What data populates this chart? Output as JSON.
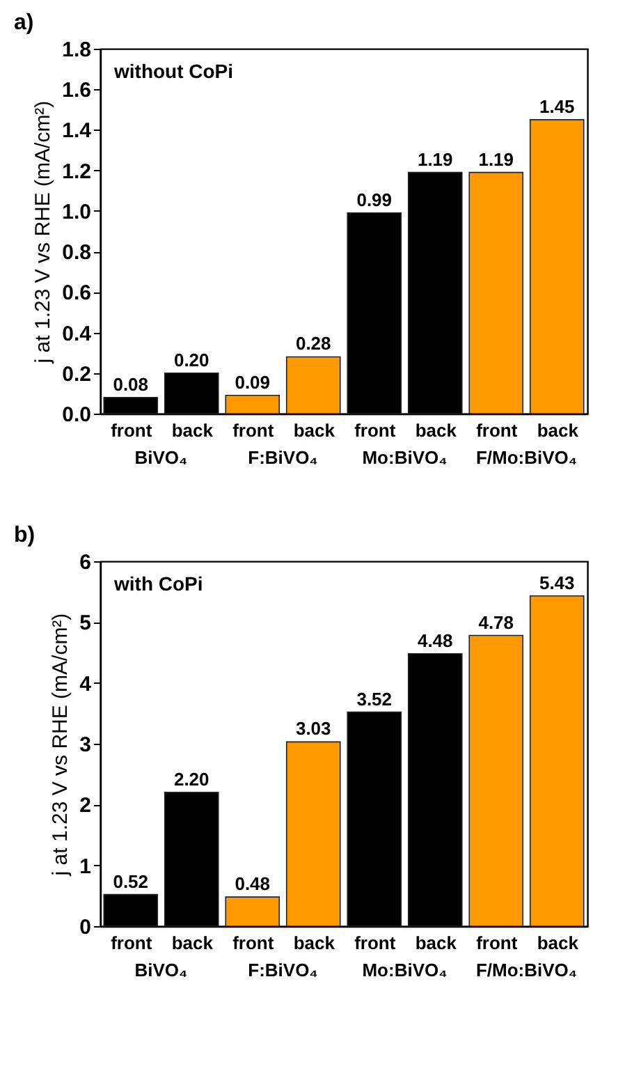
{
  "chart_data": [
    {
      "type": "bar",
      "title": "a)",
      "subtitle": "without CoPi",
      "ylabel": "j at 1.23 V vs RHE (mA/cm²)",
      "categories": [
        "front",
        "back",
        "front",
        "back",
        "front",
        "back",
        "front",
        "back"
      ],
      "values": [
        0.08,
        0.2,
        0.09,
        0.28,
        0.99,
        1.19,
        1.19,
        1.45
      ],
      "colors": [
        "#000000",
        "#000000",
        "#ff9900",
        "#ff9900",
        "#000000",
        "#000000",
        "#ff9900",
        "#ff9900"
      ],
      "value_labels": [
        "0.08",
        "0.20",
        "0.09",
        "0.28",
        "0.99",
        "1.19",
        "1.19",
        "1.45"
      ],
      "ylim": [
        0,
        1.8
      ],
      "yticks": [
        {
          "value": 0,
          "label": "0.0"
        },
        0.2,
        0.4,
        0.6,
        0.8,
        {
          "value": 1,
          "label": "1.0"
        },
        1.2,
        1.4,
        1.6,
        1.8
      ],
      "annotations": [
        "BiVO₄",
        "F:BiVO₄",
        "Mo:BiVO₄",
        "F/Mo:BiVO₄"
      ]
    },
    {
      "type": "bar",
      "title": "b)",
      "subtitle": "with CoPi",
      "ylabel": "j at 1.23 V vs RHE (mA/cm²)",
      "categories": [
        "front",
        "back",
        "front",
        "back",
        "front",
        "back",
        "front",
        "back"
      ],
      "values": [
        0.52,
        2.2,
        0.48,
        3.03,
        3.52,
        4.48,
        4.78,
        5.43
      ],
      "colors": [
        "#000000",
        "#000000",
        "#ff9900",
        "#ff9900",
        "#000000",
        "#000000",
        "#ff9900",
        "#ff9900"
      ],
      "value_labels": [
        "0.52",
        "2.20",
        "0.48",
        "3.03",
        "3.52",
        "4.48",
        "4.78",
        "5.43"
      ],
      "ylim": [
        0,
        6
      ],
      "yticks": [
        0,
        1,
        2,
        3,
        4,
        5,
        6
      ],
      "annotations": [
        "BiVO₄",
        "F:BiVO₄",
        "Mo:BiVO₄",
        "F/Mo:BiVO₄"
      ]
    }
  ]
}
